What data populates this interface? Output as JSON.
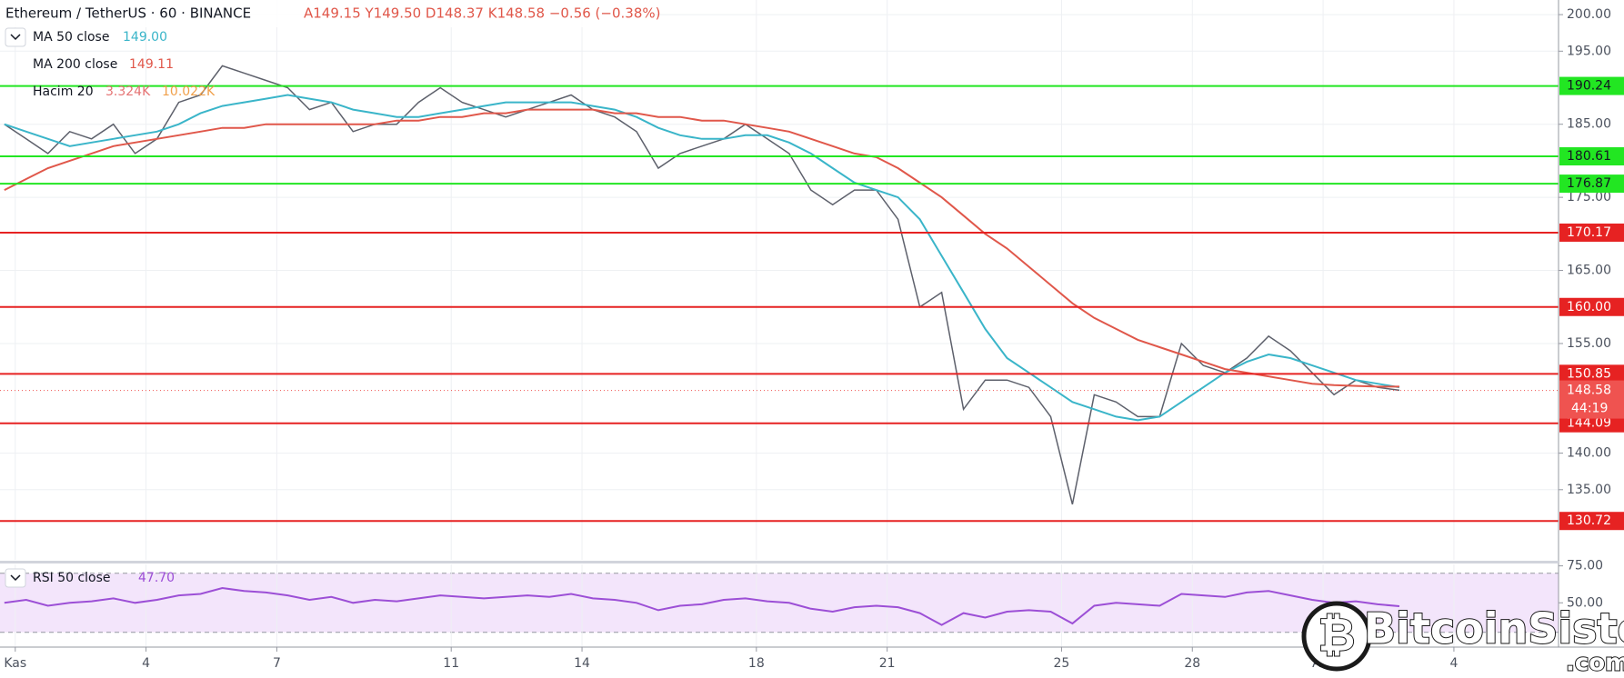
{
  "chart_data": [
    {
      "type": "line",
      "title": "Ethereum / TetherUS · 60 · BINANCE",
      "ohlc": "A149.15 Y149.50 D148.37 K148.58 −0.56 (−0.38%)",
      "x": [
        0.75,
        1.25,
        1.75,
        2.25,
        2.75,
        3.25,
        3.75,
        4.25,
        4.75,
        5.25,
        5.75,
        6.25,
        6.75,
        7.25,
        7.75,
        8.25,
        8.75,
        9.25,
        9.75,
        10.25,
        10.75,
        11.25,
        11.75,
        12.25,
        12.75,
        13.25,
        13.75,
        14.25,
        14.75,
        15.25,
        15.75,
        16.25,
        16.75,
        17.25,
        17.75,
        18.25,
        18.75,
        19.25,
        19.75,
        20.25,
        20.75,
        21.25,
        21.75,
        22.25,
        22.75,
        23.25,
        23.75,
        24.25,
        24.75,
        25.25,
        25.75,
        26.25,
        26.75,
        27.25,
        27.75,
        28.25,
        28.75,
        29.25,
        29.75,
        30.25,
        30.75,
        31.25,
        31.75,
        32.25,
        32.75
      ],
      "xlim": [
        0.65,
        36.4
      ],
      "xticks": [
        {
          "value": 1,
          "label": "Kas"
        },
        4,
        7,
        11,
        14,
        18,
        21,
        25,
        28,
        {
          "value": 31,
          "label": "Ara"
        },
        {
          "value": 34,
          "label": "4"
        }
      ],
      "ylim": [
        125.4,
        202
      ],
      "yticks": [
        {
          "value": 200,
          "label": "200.00"
        },
        {
          "value": 195,
          "label": "195.00"
        },
        {
          "value": 185,
          "label": "185.00"
        },
        {
          "value": 175,
          "label": "175.00"
        },
        {
          "value": 165,
          "label": "165.00"
        },
        {
          "value": 155,
          "label": "155.00"
        },
        {
          "value": 140,
          "label": "140.00"
        },
        {
          "value": 135,
          "label": "135.00"
        }
      ],
      "grid": true,
      "series": [
        {
          "color": "#5d606b",
          "values": [
            185,
            183,
            181,
            184,
            183,
            185,
            181,
            183,
            188,
            189,
            193,
            192,
            191,
            190,
            187,
            188,
            184,
            185,
            185,
            188,
            190,
            188,
            187,
            186,
            187,
            188,
            189,
            187,
            186,
            184,
            179,
            181,
            182,
            183,
            185,
            183,
            181,
            176,
            174,
            176,
            176,
            172,
            160,
            162,
            146,
            150,
            150,
            149,
            145,
            133,
            148,
            147,
            145,
            145,
            155,
            152,
            151,
            153,
            156,
            154,
            151,
            148,
            150,
            149,
            148.6
          ]
        },
        {
          "name": "MA 50 close",
          "last_label": "149.00",
          "color": "#3ab5c9",
          "values": [
            185,
            184,
            183,
            182,
            182.5,
            183,
            183.5,
            184,
            185,
            186.5,
            187.5,
            188,
            188.5,
            189,
            188.5,
            188,
            187,
            186.5,
            186,
            186,
            186.5,
            187,
            187.5,
            188,
            188,
            188,
            188,
            187.5,
            187,
            186,
            184.5,
            183.5,
            183,
            183,
            183.5,
            183.5,
            182.5,
            181,
            179,
            177,
            176,
            175,
            172,
            167,
            162,
            157,
            153,
            151,
            149,
            147,
            146,
            145,
            144.5,
            145,
            147,
            149,
            151,
            152.5,
            153.5,
            153,
            152,
            151,
            150,
            149.5,
            149
          ]
        },
        {
          "name": "MA 200 close",
          "last_label": "149.11",
          "color": "#e0574a",
          "values": [
            176,
            177.5,
            179,
            180,
            181,
            182,
            182.5,
            183,
            183.5,
            184,
            184.5,
            184.5,
            185,
            185,
            185,
            185,
            185,
            185,
            185.5,
            185.5,
            186,
            186,
            186.5,
            186.5,
            187,
            187,
            187,
            187,
            186.5,
            186.5,
            186,
            186,
            185.5,
            185.5,
            185,
            184.5,
            184,
            183,
            182,
            181,
            180.5,
            179,
            177,
            175,
            172.5,
            170,
            168,
            165.5,
            163,
            160.5,
            158.5,
            157,
            155.5,
            154.5,
            153.5,
            152.5,
            151.5,
            151,
            150.5,
            150,
            149.5,
            149.3,
            149.2,
            149.1,
            149.1
          ]
        }
      ],
      "volume_legend": {
        "name": "Hacim 20",
        "labels": [
          "3.324K",
          "10.022K"
        ]
      },
      "levels": [
        {
          "value": 190.24,
          "label": "190.24",
          "color": "#22e622"
        },
        {
          "value": 180.61,
          "label": "180.61",
          "color": "#22e622"
        },
        {
          "value": 176.87,
          "label": "176.87",
          "color": "#22e622"
        },
        {
          "value": 170.17,
          "label": "170.17",
          "color": "#e62222"
        },
        {
          "value": 160.0,
          "label": "160.00",
          "color": "#e62222"
        },
        {
          "value": 150.85,
          "label": "150.85",
          "color": "#e62222"
        },
        {
          "value": 144.09,
          "label": "144.09",
          "color": "#e62222"
        },
        {
          "value": 130.72,
          "label": "130.72",
          "color": "#e62222"
        }
      ],
      "last_price": {
        "value": 148.58,
        "label": "148.58",
        "countdown": "44:19",
        "color": "#ef5350"
      },
      "watermark": [
        "BitcoinSistemi",
        ".com"
      ]
    },
    {
      "type": "line",
      "series": [
        {
          "name": "RSI 50 close",
          "last_label": "47.70",
          "color": "#9c4fd6",
          "values": [
            50,
            52,
            48,
            50,
            51,
            53,
            50,
            52,
            55,
            56,
            60,
            58,
            57,
            55,
            52,
            54,
            50,
            52,
            51,
            53,
            55,
            54,
            53,
            54,
            55,
            54,
            56,
            53,
            52,
            50,
            45,
            48,
            49,
            52,
            53,
            51,
            50,
            46,
            44,
            47,
            48,
            47,
            43,
            35,
            43,
            40,
            44,
            45,
            44,
            36,
            48,
            50,
            49,
            48,
            56,
            55,
            54,
            57,
            58,
            55,
            52,
            50,
            51,
            49,
            47.7
          ]
        }
      ],
      "ylim": [
        20,
        76
      ],
      "yticks": [
        {
          "value": 75,
          "label": "75.00"
        },
        {
          "value": 50,
          "label": "50.00"
        }
      ],
      "band": [
        30,
        70
      ]
    }
  ]
}
